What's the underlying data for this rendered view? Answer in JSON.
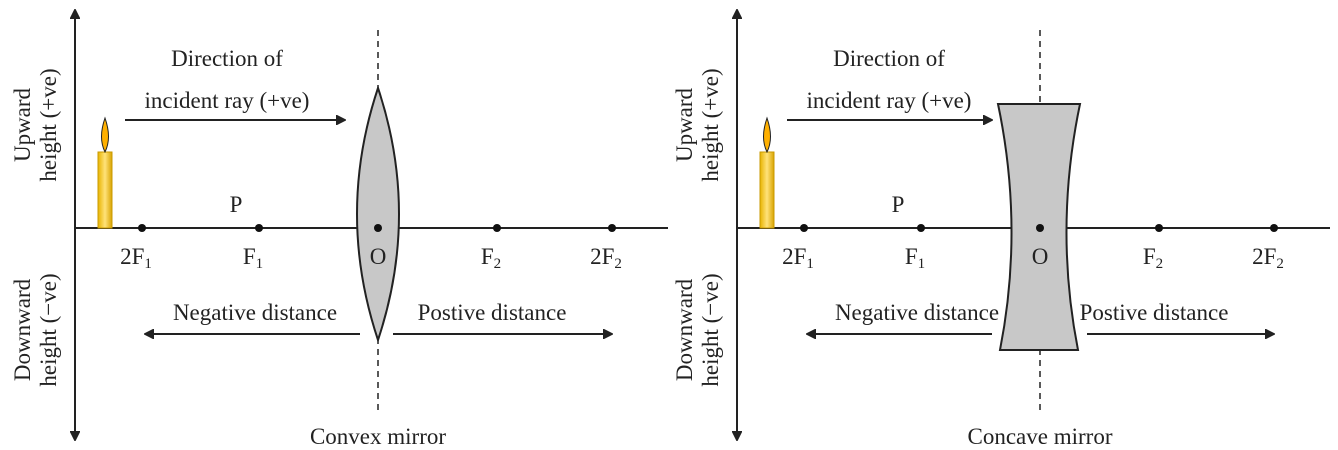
{
  "panels": [
    {
      "caption": "Convex mirror",
      "upward": [
        "Upward",
        "height (+ve)"
      ],
      "downward": [
        "Downward",
        "height (−ve)"
      ],
      "direction": [
        "Direction of",
        "incident ray (+ve)"
      ],
      "object_label": "P",
      "points": [
        {
          "main": "2F",
          "sub": "1"
        },
        {
          "main": "F",
          "sub": "1"
        },
        {
          "main": "O",
          "sub": ""
        },
        {
          "main": "F",
          "sub": "2"
        },
        {
          "main": "2F",
          "sub": "2"
        }
      ],
      "negative": "Negative distance",
      "positive": "Postive distance"
    },
    {
      "caption": "Concave mirror",
      "upward": [
        "Upward",
        "height (+ve)"
      ],
      "downward": [
        "Downward",
        "height (−ve)"
      ],
      "direction": [
        "Direction of",
        "incident ray (+ve)"
      ],
      "object_label": "P",
      "points": [
        {
          "main": "2F",
          "sub": "1"
        },
        {
          "main": "F",
          "sub": "1"
        },
        {
          "main": "O",
          "sub": ""
        },
        {
          "main": "F",
          "sub": "2"
        },
        {
          "main": "2F",
          "sub": "2"
        }
      ],
      "negative": "Negative distance",
      "positive": "Postive distance"
    }
  ]
}
